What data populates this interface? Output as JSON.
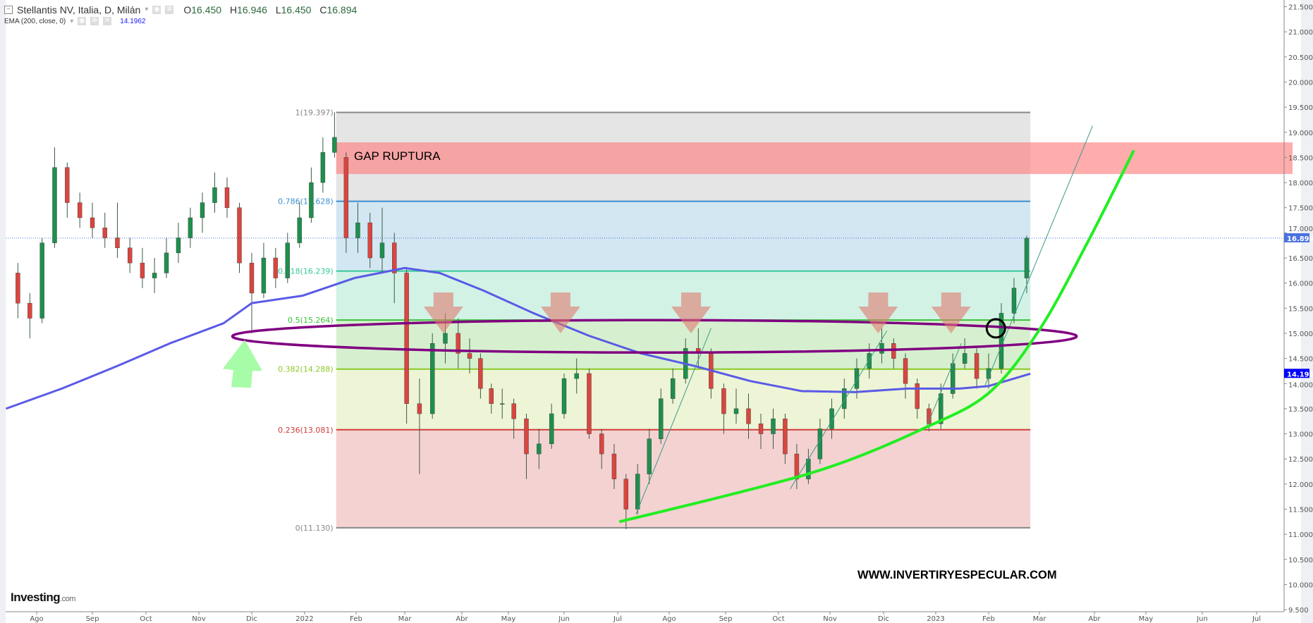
{
  "header": {
    "title": "Stellantis NV, Italia, D, Milán",
    "open": "16.450",
    "high": "16.946",
    "low": "16.450",
    "close": "16.894",
    "open_prefix": "O",
    "high_prefix": "H",
    "low_prefix": "L",
    "close_prefix": "C",
    "indicator": "EMA (200, close, 0)",
    "indicator_value": "14.1962"
  },
  "branding": {
    "logo": "Investing",
    "logo_suffix": ".com",
    "watermark": "WWW.INVERTIRYESPECULAR.COM"
  },
  "chart_data": {
    "type": "candlestick",
    "title": "Stellantis NV, Italia, D, Milán",
    "colors": {
      "up": "#1f8f4e",
      "down": "#d9463f",
      "ema": "#5a5ae6",
      "last_price": "#4a72e0",
      "ema_label": "#0000ff"
    },
    "ylim": [
      9.5,
      21.5
    ],
    "y_ticks": [
      "9.500",
      "10.000",
      "10.500",
      "11.000",
      "11.500",
      "12.000",
      "12.500",
      "13.000",
      "13.500",
      "14.000",
      "14.500",
      "15.000",
      "15.500",
      "16.000",
      "16.500",
      "17.000",
      "17.500",
      "18.000",
      "18.500",
      "19.000",
      "19.500",
      "20.000",
      "20.500",
      "21.000",
      "21.500"
    ],
    "x_ticks": [
      {
        "label": "Ago",
        "date": "2021-08-01"
      },
      {
        "label": "Sep",
        "date": "2021-09-01"
      },
      {
        "label": "Oct",
        "date": "2021-10-01"
      },
      {
        "label": "Nov",
        "date": "2021-11-01"
      },
      {
        "label": "Dic",
        "date": "2021-12-01"
      },
      {
        "label": "2022",
        "date": "2022-01-01"
      },
      {
        "label": "Feb",
        "date": "2022-02-01"
      },
      {
        "label": "Mar",
        "date": "2022-03-01"
      },
      {
        "label": "Abr",
        "date": "2022-04-01"
      },
      {
        "label": "May",
        "date": "2022-05-01"
      },
      {
        "label": "Jun",
        "date": "2022-06-01"
      },
      {
        "label": "Jul",
        "date": "2022-07-01"
      },
      {
        "label": "Ago",
        "date": "2022-08-01"
      },
      {
        "label": "Sep",
        "date": "2022-09-01"
      },
      {
        "label": "Oct",
        "date": "2022-10-01"
      },
      {
        "label": "Nov",
        "date": "2022-11-01"
      },
      {
        "label": "Dic",
        "date": "2022-12-01"
      },
      {
        "label": "2023",
        "date": "2023-01-01"
      },
      {
        "label": "Feb",
        "date": "2023-02-01"
      },
      {
        "label": "Mar",
        "date": "2023-03-01"
      },
      {
        "label": "Abr",
        "date": "2023-04-01"
      },
      {
        "label": "May",
        "date": "2023-05-01"
      },
      {
        "label": "Jun",
        "date": "2023-06-01"
      },
      {
        "label": "Jul",
        "date": "2023-07-01"
      }
    ],
    "candles": [
      [
        "2021-07-19",
        16.2,
        16.4,
        15.3,
        15.6
      ],
      [
        "2021-07-26",
        15.6,
        15.8,
        14.9,
        15.3
      ],
      [
        "2021-08-02",
        15.3,
        16.9,
        15.2,
        16.8
      ],
      [
        "2021-08-09",
        16.8,
        18.7,
        16.7,
        18.3
      ],
      [
        "2021-08-16",
        18.3,
        18.4,
        17.3,
        17.6
      ],
      [
        "2021-08-23",
        17.6,
        17.8,
        17.1,
        17.3
      ],
      [
        "2021-08-30",
        17.3,
        17.6,
        16.9,
        17.1
      ],
      [
        "2021-09-06",
        17.1,
        17.4,
        16.7,
        16.9
      ],
      [
        "2021-09-13",
        16.9,
        17.6,
        16.5,
        16.7
      ],
      [
        "2021-09-20",
        16.7,
        16.9,
        16.2,
        16.4
      ],
      [
        "2021-09-27",
        16.4,
        16.7,
        15.9,
        16.1
      ],
      [
        "2021-10-04",
        16.1,
        16.5,
        15.8,
        16.2
      ],
      [
        "2021-10-11",
        16.2,
        16.9,
        16.1,
        16.6
      ],
      [
        "2021-10-18",
        16.6,
        17.2,
        16.4,
        16.9
      ],
      [
        "2021-10-25",
        16.9,
        17.5,
        16.7,
        17.3
      ],
      [
        "2021-11-01",
        17.3,
        17.8,
        17.0,
        17.6
      ],
      [
        "2021-11-08",
        17.6,
        18.2,
        17.4,
        17.9
      ],
      [
        "2021-11-15",
        17.9,
        18.1,
        17.3,
        17.5
      ],
      [
        "2021-11-22",
        17.5,
        17.6,
        16.2,
        16.4
      ],
      [
        "2021-11-29",
        16.4,
        16.6,
        15.0,
        15.8
      ],
      [
        "2021-12-06",
        15.8,
        16.8,
        15.7,
        16.5
      ],
      [
        "2021-12-13",
        16.5,
        16.7,
        15.9,
        16.1
      ],
      [
        "2021-12-20",
        16.1,
        17.0,
        16.0,
        16.8
      ],
      [
        "2021-12-27",
        16.8,
        17.6,
        16.7,
        17.3
      ],
      [
        "2022-01-03",
        17.3,
        18.3,
        17.2,
        18.0
      ],
      [
        "2022-01-10",
        18.0,
        18.9,
        17.8,
        18.6
      ],
      [
        "2022-01-17",
        18.6,
        19.4,
        18.5,
        18.9
      ],
      [
        "2022-01-24",
        18.5,
        18.6,
        16.6,
        16.9
      ],
      [
        "2022-01-31",
        16.9,
        17.6,
        16.6,
        17.2
      ],
      [
        "2022-02-07",
        17.2,
        17.4,
        16.3,
        16.5
      ],
      [
        "2022-02-14",
        16.5,
        17.5,
        16.2,
        16.8
      ],
      [
        "2022-02-21",
        16.8,
        17.0,
        15.6,
        16.2
      ],
      [
        "2022-02-28",
        16.2,
        16.3,
        13.2,
        13.6
      ],
      [
        "2022-03-07",
        13.6,
        14.1,
        12.2,
        13.4
      ],
      [
        "2022-03-14",
        13.4,
        15.0,
        13.3,
        14.8
      ],
      [
        "2022-03-21",
        14.8,
        15.4,
        14.4,
        15.0
      ],
      [
        "2022-03-28",
        15.0,
        15.3,
        14.3,
        14.6
      ],
      [
        "2022-04-04",
        14.6,
        14.9,
        14.2,
        14.5
      ],
      [
        "2022-04-11",
        14.5,
        14.6,
        13.7,
        13.9
      ],
      [
        "2022-04-18",
        13.9,
        14.0,
        13.4,
        13.6
      ],
      [
        "2022-04-25",
        13.6,
        13.9,
        13.3,
        13.6
      ],
      [
        "2022-05-02",
        13.6,
        13.7,
        12.9,
        13.3
      ],
      [
        "2022-05-09",
        13.3,
        13.4,
        12.1,
        12.6
      ],
      [
        "2022-05-16",
        12.6,
        13.1,
        12.3,
        12.8
      ],
      [
        "2022-05-23",
        12.8,
        13.6,
        12.7,
        13.4
      ],
      [
        "2022-05-30",
        13.4,
        14.2,
        13.3,
        14.1
      ],
      [
        "2022-06-06",
        14.1,
        14.5,
        13.8,
        14.2
      ],
      [
        "2022-06-13",
        14.2,
        14.3,
        12.9,
        13.0
      ],
      [
        "2022-06-20",
        13.0,
        13.1,
        12.3,
        12.6
      ],
      [
        "2022-06-27",
        12.6,
        12.8,
        11.9,
        12.1
      ],
      [
        "2022-07-04",
        12.1,
        12.2,
        11.1,
        11.5
      ],
      [
        "2022-07-11",
        11.5,
        12.4,
        11.4,
        12.2
      ],
      [
        "2022-07-18",
        12.2,
        13.1,
        12.0,
        12.9
      ],
      [
        "2022-07-25",
        12.9,
        13.9,
        12.8,
        13.7
      ],
      [
        "2022-08-01",
        13.7,
        14.3,
        13.6,
        14.1
      ],
      [
        "2022-08-08",
        14.1,
        14.9,
        14.0,
        14.7
      ],
      [
        "2022-08-15",
        14.7,
        15.1,
        14.3,
        14.6
      ],
      [
        "2022-08-22",
        14.6,
        14.7,
        13.7,
        13.9
      ],
      [
        "2022-08-29",
        13.9,
        14.0,
        13.0,
        13.4
      ],
      [
        "2022-09-05",
        13.4,
        13.9,
        13.2,
        13.5
      ],
      [
        "2022-09-12",
        13.5,
        13.8,
        12.9,
        13.2
      ],
      [
        "2022-09-19",
        13.2,
        13.4,
        12.7,
        13.0
      ],
      [
        "2022-09-26",
        13.0,
        13.5,
        12.7,
        13.3
      ],
      [
        "2022-10-03",
        13.3,
        13.4,
        12.4,
        12.6
      ],
      [
        "2022-10-10",
        12.6,
        12.8,
        11.9,
        12.1
      ],
      [
        "2022-10-17",
        12.1,
        12.7,
        12.0,
        12.5
      ],
      [
        "2022-10-24",
        12.5,
        13.3,
        12.4,
        13.1
      ],
      [
        "2022-10-31",
        13.1,
        13.7,
        12.9,
        13.5
      ],
      [
        "2022-11-07",
        13.5,
        14.1,
        13.3,
        13.9
      ],
      [
        "2022-11-14",
        13.9,
        14.5,
        13.7,
        14.3
      ],
      [
        "2022-11-21",
        14.3,
        14.8,
        14.1,
        14.6
      ],
      [
        "2022-11-28",
        14.6,
        15.1,
        14.4,
        14.8
      ],
      [
        "2022-12-05",
        14.8,
        14.9,
        14.3,
        14.5
      ],
      [
        "2022-12-12",
        14.5,
        14.6,
        13.7,
        14.0
      ],
      [
        "2022-12-19",
        14.0,
        14.1,
        13.3,
        13.5
      ],
      [
        "2022-12-26",
        13.5,
        13.6,
        13.05,
        13.2
      ],
      [
        "2023-01-02",
        13.2,
        14.0,
        13.1,
        13.8
      ],
      [
        "2023-01-09",
        13.8,
        14.6,
        13.7,
        14.4
      ],
      [
        "2023-01-16",
        14.4,
        14.9,
        14.3,
        14.6
      ],
      [
        "2023-01-23",
        14.6,
        14.7,
        13.9,
        14.1
      ],
      [
        "2023-01-30",
        14.1,
        14.6,
        13.9,
        14.3
      ],
      [
        "2023-02-06",
        14.3,
        15.6,
        14.2,
        15.4
      ],
      [
        "2023-02-13",
        15.4,
        16.1,
        15.2,
        15.9
      ],
      [
        "2023-02-20",
        16.1,
        16.946,
        15.8,
        16.894
      ]
    ],
    "ema": [
      [
        "2021-07-14",
        13.5
      ],
      [
        "2021-08-15",
        13.9
      ],
      [
        "2021-09-15",
        14.35
      ],
      [
        "2021-10-15",
        14.8
      ],
      [
        "2021-11-15",
        15.2
      ],
      [
        "2021-12-01",
        15.6
      ],
      [
        "2021-12-31",
        15.75
      ],
      [
        "2022-01-31",
        16.1
      ],
      [
        "2022-03-01",
        16.3
      ],
      [
        "2022-03-20",
        16.2
      ],
      [
        "2022-04-15",
        15.85
      ],
      [
        "2022-05-15",
        15.4
      ],
      [
        "2022-06-15",
        14.95
      ],
      [
        "2022-07-15",
        14.6
      ],
      [
        "2022-08-15",
        14.35
      ],
      [
        "2022-09-15",
        14.05
      ],
      [
        "2022-10-15",
        13.85
      ],
      [
        "2022-11-15",
        13.83
      ],
      [
        "2022-12-15",
        13.9
      ],
      [
        "2023-01-15",
        13.9
      ],
      [
        "2023-02-01",
        13.95
      ],
      [
        "2023-02-24",
        14.196
      ]
    ],
    "last_price": "16.894",
    "ema_last": "14.196",
    "fibonacci": {
      "start": "2022-01-20",
      "end": "2023-02-24",
      "levels": [
        {
          "label": "1(19.397)",
          "value": 19.397,
          "line": "#888888",
          "fill": "#e5e5e5"
        },
        {
          "label": "0.786(17.628)",
          "value": 17.628,
          "line": "#3d8fcf",
          "fill": "#d3e7f3"
        },
        {
          "label": "0.618(16.239)",
          "value": 16.239,
          "line": "#35c79a",
          "fill": "#d2f2e6"
        },
        {
          "label": "0.5(15.264)",
          "value": 15.264,
          "line": "#3ac23a",
          "fill": "#d6f0cf"
        },
        {
          "label": "0.382(14.288)",
          "value": 14.288,
          "line": "#8ac926",
          "fill": "#edf5d6"
        },
        {
          "label": "0.236(13.081)",
          "value": 13.081,
          "line": "#d23c3c",
          "fill": "#f4d2d2"
        },
        {
          "label": "0(11.130)",
          "value": 11.13,
          "line": "#888888",
          "fill": null
        }
      ]
    },
    "annotations": {
      "gap_zone": {
        "label": "GAP RUPTURA",
        "start": "2022-01-20",
        "price_low": 18.17,
        "price_high": 18.8,
        "color": "#ff8080"
      },
      "ellipse": {
        "center_date": "2022-07-11",
        "center_price": 14.94,
        "from": "2021-11-20",
        "to": "2023-03-22",
        "color": "#800080"
      },
      "down_arrows": [
        [
          "2022-03-22",
          15.0
        ],
        [
          "2022-05-30",
          15.0
        ],
        [
          "2022-08-13",
          15.0
        ],
        [
          "2022-11-28",
          15.0
        ],
        [
          "2023-01-10",
          15.0
        ]
      ],
      "up_arrow": [
        "2021-11-27",
        14.87
      ],
      "circle": [
        "2023-02-05",
        15.1
      ],
      "curve": [
        [
          "2022-07-02",
          11.25
        ],
        [
          "2022-09-16",
          11.9
        ],
        [
          "2022-11-05",
          12.39
        ],
        [
          "2022-12-25",
          13.11
        ],
        [
          "2023-02-01",
          13.81
        ],
        [
          "2023-03-01",
          15.07
        ],
        [
          "2023-03-28",
          16.8
        ],
        [
          "2023-04-24",
          18.64
        ]
      ],
      "trend_lines": [
        [
          [
            "2022-07-12",
            11.4
          ],
          [
            "2022-08-24",
            15.1
          ]
        ],
        [
          [
            "2022-10-08",
            11.9
          ],
          [
            "2022-12-03",
            15.05
          ]
        ],
        [
          [
            "2022-12-26",
            13.1
          ],
          [
            "2023-01-16",
            14.8
          ]
        ],
        [
          [
            "2023-01-30",
            13.97
          ],
          [
            "2023-03-31",
            19.13
          ]
        ]
      ]
    }
  }
}
